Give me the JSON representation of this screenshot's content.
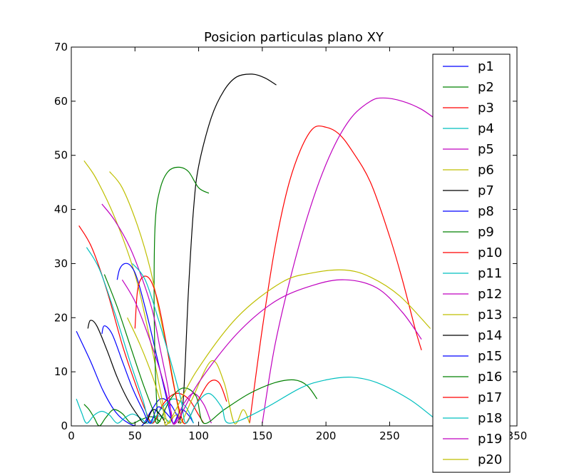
{
  "chart_data": {
    "type": "line",
    "title": "Posicion particulas plano XY",
    "xlabel": "",
    "ylabel": "",
    "xlim": [
      0,
      350
    ],
    "ylim": [
      0,
      70
    ],
    "xticks": [
      "0",
      "50",
      "100",
      "150",
      "200",
      "250",
      "300",
      "350"
    ],
    "yticks": [
      "0",
      "10",
      "20",
      "30",
      "40",
      "50",
      "60",
      "70"
    ],
    "grid": false,
    "legend_position": "right",
    "series": [
      {
        "name": "p1",
        "color": "#0000ff",
        "points": [
          [
            4,
            17.5
          ],
          [
            15,
            12
          ],
          [
            25,
            6.5
          ],
          [
            35,
            2.5
          ],
          [
            45,
            0.5
          ],
          [
            55,
            0
          ],
          [
            62,
            2.5
          ],
          [
            70,
            5
          ],
          [
            78,
            4
          ],
          [
            86,
            0.5
          ]
        ]
      },
      {
        "name": "p2",
        "color": "#008000",
        "points": [
          [
            10,
            4
          ],
          [
            14,
            3
          ],
          [
            18,
            1.5
          ],
          [
            22,
            0
          ],
          [
            27,
            1.5
          ],
          [
            33,
            3
          ],
          [
            40,
            2.3
          ],
          [
            47,
            0.5
          ],
          [
            55,
            1.2
          ],
          [
            63,
            1.7
          ],
          [
            70,
            0.8
          ]
        ]
      },
      {
        "name": "p3",
        "color": "#ff0000",
        "points": [
          [
            140,
            0.5
          ],
          [
            150,
            18
          ],
          [
            160,
            33
          ],
          [
            170,
            44
          ],
          [
            180,
            51
          ],
          [
            190,
            55
          ],
          [
            200,
            55.2
          ],
          [
            210,
            54
          ],
          [
            220,
            51
          ],
          [
            235,
            45
          ],
          [
            250,
            35
          ],
          [
            260,
            27
          ],
          [
            270,
            18
          ],
          [
            275,
            14
          ]
        ]
      },
      {
        "name": "p4",
        "color": "#00bfbf",
        "points": [
          [
            4,
            5
          ],
          [
            8,
            2.5
          ],
          [
            12,
            0.5
          ],
          [
            18,
            2
          ],
          [
            24,
            2.7
          ],
          [
            30,
            2
          ],
          [
            36,
            0.5
          ],
          [
            42,
            1.5
          ],
          [
            48,
            2.2
          ],
          [
            54,
            1.5
          ],
          [
            60,
            0.5
          ],
          [
            66,
            1.8
          ],
          [
            72,
            1.6
          ],
          [
            78,
            0.5
          ]
        ]
      },
      {
        "name": "p5",
        "color": "#bf00bf",
        "points": [
          [
            150,
            0.5
          ],
          [
            160,
            15
          ],
          [
            175,
            30
          ],
          [
            190,
            42
          ],
          [
            205,
            51
          ],
          [
            220,
            57
          ],
          [
            235,
            60
          ],
          [
            245,
            60.6
          ],
          [
            260,
            60
          ],
          [
            275,
            58.5
          ],
          [
            290,
            56
          ]
        ]
      },
      {
        "name": "p6",
        "color": "#bfbf00",
        "points": [
          [
            10,
            49
          ],
          [
            20,
            45.5
          ],
          [
            35,
            38
          ],
          [
            50,
            28
          ],
          [
            60,
            18
          ],
          [
            67,
            10
          ],
          [
            72,
            4
          ],
          [
            76,
            0.5
          ],
          [
            82,
            2
          ],
          [
            88,
            0.5
          ]
        ]
      },
      {
        "name": "p7",
        "color": "#000000",
        "points": [
          [
            84,
            0.5
          ],
          [
            88,
            5
          ],
          [
            92,
            25
          ],
          [
            96,
            40
          ],
          [
            100,
            48
          ],
          [
            110,
            57
          ],
          [
            120,
            62
          ],
          [
            130,
            64.5
          ],
          [
            142,
            65
          ],
          [
            152,
            64.3
          ],
          [
            161,
            63
          ]
        ]
      },
      {
        "name": "p8",
        "color": "#0000ff",
        "points": [
          [
            36,
            27
          ],
          [
            38,
            29
          ],
          [
            42,
            30
          ],
          [
            47,
            29.5
          ],
          [
            52,
            27
          ],
          [
            60,
            20
          ],
          [
            68,
            12
          ],
          [
            76,
            4
          ],
          [
            80,
            0.5
          ],
          [
            86,
            3
          ],
          [
            92,
            2
          ],
          [
            96,
            0.5
          ]
        ]
      },
      {
        "name": "p9",
        "color": "#008000",
        "points": [
          [
            68,
            0.5
          ],
          [
            66,
            10
          ],
          [
            65,
            25
          ],
          [
            66,
            38
          ],
          [
            70,
            44
          ],
          [
            76,
            47
          ],
          [
            84,
            47.8
          ],
          [
            92,
            47
          ],
          [
            100,
            44
          ],
          [
            108,
            43
          ]
        ]
      },
      {
        "name": "p10",
        "color": "#ff0000",
        "points": [
          [
            6,
            37
          ],
          [
            16,
            33
          ],
          [
            28,
            25
          ],
          [
            40,
            15
          ],
          [
            50,
            8
          ],
          [
            58,
            3
          ],
          [
            64,
            0.5
          ],
          [
            72,
            4
          ],
          [
            82,
            6
          ],
          [
            92,
            5
          ],
          [
            100,
            2
          ],
          [
            104,
            0.5
          ]
        ]
      },
      {
        "name": "p11",
        "color": "#00bfbf",
        "points": [
          [
            12,
            33
          ],
          [
            22,
            29
          ],
          [
            34,
            21
          ],
          [
            46,
            12
          ],
          [
            56,
            5
          ],
          [
            62,
            0.5
          ],
          [
            70,
            3
          ],
          [
            80,
            5
          ],
          [
            90,
            3.5
          ],
          [
            96,
            0.5
          ]
        ]
      },
      {
        "name": "p12",
        "color": "#bf00bf",
        "points": [
          [
            24,
            41
          ],
          [
            34,
            38
          ],
          [
            46,
            33
          ],
          [
            56,
            27
          ],
          [
            64,
            21
          ],
          [
            70,
            14
          ],
          [
            76,
            7
          ],
          [
            80,
            0.5
          ],
          [
            88,
            4
          ],
          [
            96,
            6
          ],
          [
            104,
            4
          ],
          [
            110,
            0.5
          ]
        ]
      },
      {
        "name": "p13",
        "color": "#bfbf00",
        "points": [
          [
            30,
            47
          ],
          [
            40,
            44
          ],
          [
            52,
            37
          ],
          [
            62,
            29
          ],
          [
            70,
            20
          ],
          [
            78,
            11
          ],
          [
            84,
            3
          ],
          [
            86,
            0.5
          ],
          [
            95,
            5
          ],
          [
            110,
            12
          ],
          [
            120,
            8
          ],
          [
            128,
            0.5
          ],
          [
            135,
            3
          ],
          [
            140,
            0.5
          ]
        ]
      },
      {
        "name": "p14",
        "color": "#000000",
        "points": [
          [
            13,
            18
          ],
          [
            15,
            19.5
          ],
          [
            20,
            18.5
          ],
          [
            28,
            14
          ],
          [
            36,
            9
          ],
          [
            44,
            5
          ],
          [
            52,
            2
          ],
          [
            58,
            0.5
          ],
          [
            64,
            3
          ],
          [
            70,
            2
          ],
          [
            74,
            0.5
          ]
        ]
      },
      {
        "name": "p15",
        "color": "#0000ff",
        "points": [
          [
            24,
            17
          ],
          [
            26,
            18.5
          ],
          [
            32,
            17
          ],
          [
            40,
            12
          ],
          [
            48,
            7
          ],
          [
            56,
            3
          ],
          [
            62,
            0.5
          ],
          [
            68,
            3.5
          ],
          [
            76,
            2
          ],
          [
            80,
            0.5
          ]
        ]
      },
      {
        "name": "p16",
        "color": "#008000",
        "points": [
          [
            26,
            28
          ],
          [
            36,
            22
          ],
          [
            46,
            15
          ],
          [
            56,
            8
          ],
          [
            64,
            3
          ],
          [
            68,
            0.5
          ],
          [
            78,
            5
          ],
          [
            88,
            7
          ],
          [
            98,
            5.5
          ],
          [
            104,
            0.5
          ],
          [
            120,
            3
          ],
          [
            140,
            6
          ],
          [
            160,
            8
          ],
          [
            175,
            8.5
          ],
          [
            185,
            7.5
          ],
          [
            193,
            5
          ]
        ]
      },
      {
        "name": "p17",
        "color": "#ff0000",
        "points": [
          [
            50,
            18
          ],
          [
            52,
            25
          ],
          [
            56,
            27.5
          ],
          [
            62,
            27
          ],
          [
            68,
            23
          ],
          [
            74,
            16
          ],
          [
            80,
            8
          ],
          [
            86,
            2
          ],
          [
            90,
            0.5
          ],
          [
            98,
            4
          ],
          [
            108,
            8
          ],
          [
            116,
            8
          ],
          [
            122,
            4.5
          ]
        ]
      },
      {
        "name": "p18",
        "color": "#00bfbf",
        "points": [
          [
            48,
            30
          ],
          [
            58,
            27
          ],
          [
            68,
            20
          ],
          [
            78,
            12
          ],
          [
            86,
            5
          ],
          [
            90,
            0.5
          ],
          [
            98,
            4
          ],
          [
            108,
            6
          ],
          [
            118,
            3.5
          ],
          [
            124,
            0.5
          ],
          [
            150,
            3
          ],
          [
            180,
            7
          ],
          [
            200,
            8.5
          ],
          [
            220,
            9
          ],
          [
            240,
            8
          ],
          [
            265,
            5
          ],
          [
            282,
            2
          ],
          [
            290,
            0.5
          ],
          [
            300,
            2
          ]
        ]
      },
      {
        "name": "p19",
        "color": "#bf00bf",
        "points": [
          [
            40,
            27
          ],
          [
            50,
            23
          ],
          [
            60,
            17
          ],
          [
            70,
            10
          ],
          [
            78,
            3
          ],
          [
            82,
            0.5
          ],
          [
            100,
            8
          ],
          [
            130,
            17
          ],
          [
            160,
            23
          ],
          [
            190,
            26
          ],
          [
            215,
            27
          ],
          [
            240,
            25.5
          ],
          [
            260,
            21
          ],
          [
            275,
            16
          ]
        ]
      },
      {
        "name": "p20",
        "color": "#bfbf00",
        "points": [
          [
            44,
            20
          ],
          [
            54,
            15
          ],
          [
            64,
            9
          ],
          [
            72,
            3
          ],
          [
            76,
            0.5
          ],
          [
            98,
            10
          ],
          [
            130,
            20
          ],
          [
            165,
            26.5
          ],
          [
            190,
            28.3
          ],
          [
            215,
            28.8
          ],
          [
            235,
            27.5
          ],
          [
            258,
            24
          ],
          [
            282,
            18
          ]
        ]
      }
    ]
  }
}
